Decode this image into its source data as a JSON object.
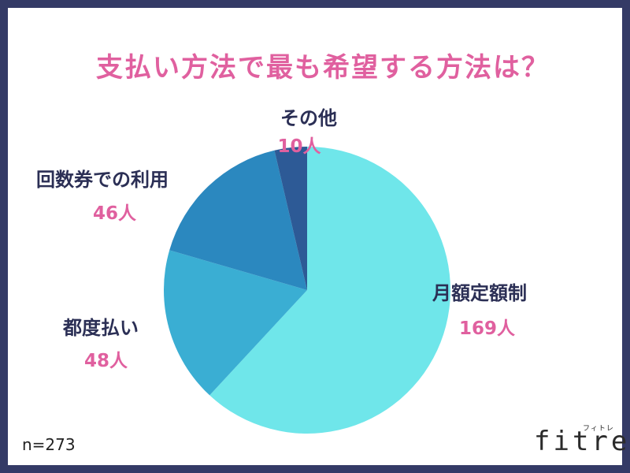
{
  "title": "支払い方法で最も希望する方法は？",
  "sample_size": "n=273",
  "brand": {
    "logo": "fitre",
    "kana": "フィトレ"
  },
  "colors": {
    "frame": "#343a66",
    "title": "#e0609f",
    "label": "#2b2f55",
    "value": "#e0609f"
  },
  "chart_data": {
    "type": "pie",
    "title": "支払い方法で最も希望する方法は？",
    "slices": [
      {
        "label": "月額定額制",
        "value": 169,
        "value_label": "169人",
        "color": "#6fe6ea"
      },
      {
        "label": "都度払い",
        "value": 48,
        "value_label": "48人",
        "color": "#3aaed3"
      },
      {
        "label": "回数券での利用",
        "value": 46,
        "value_label": "46人",
        "color": "#2b88bf"
      },
      {
        "label": "その他",
        "value": 10,
        "value_label": "10人",
        "color": "#2d5a96"
      }
    ],
    "total": 273,
    "start_angle": "top",
    "direction": "clockwise"
  }
}
